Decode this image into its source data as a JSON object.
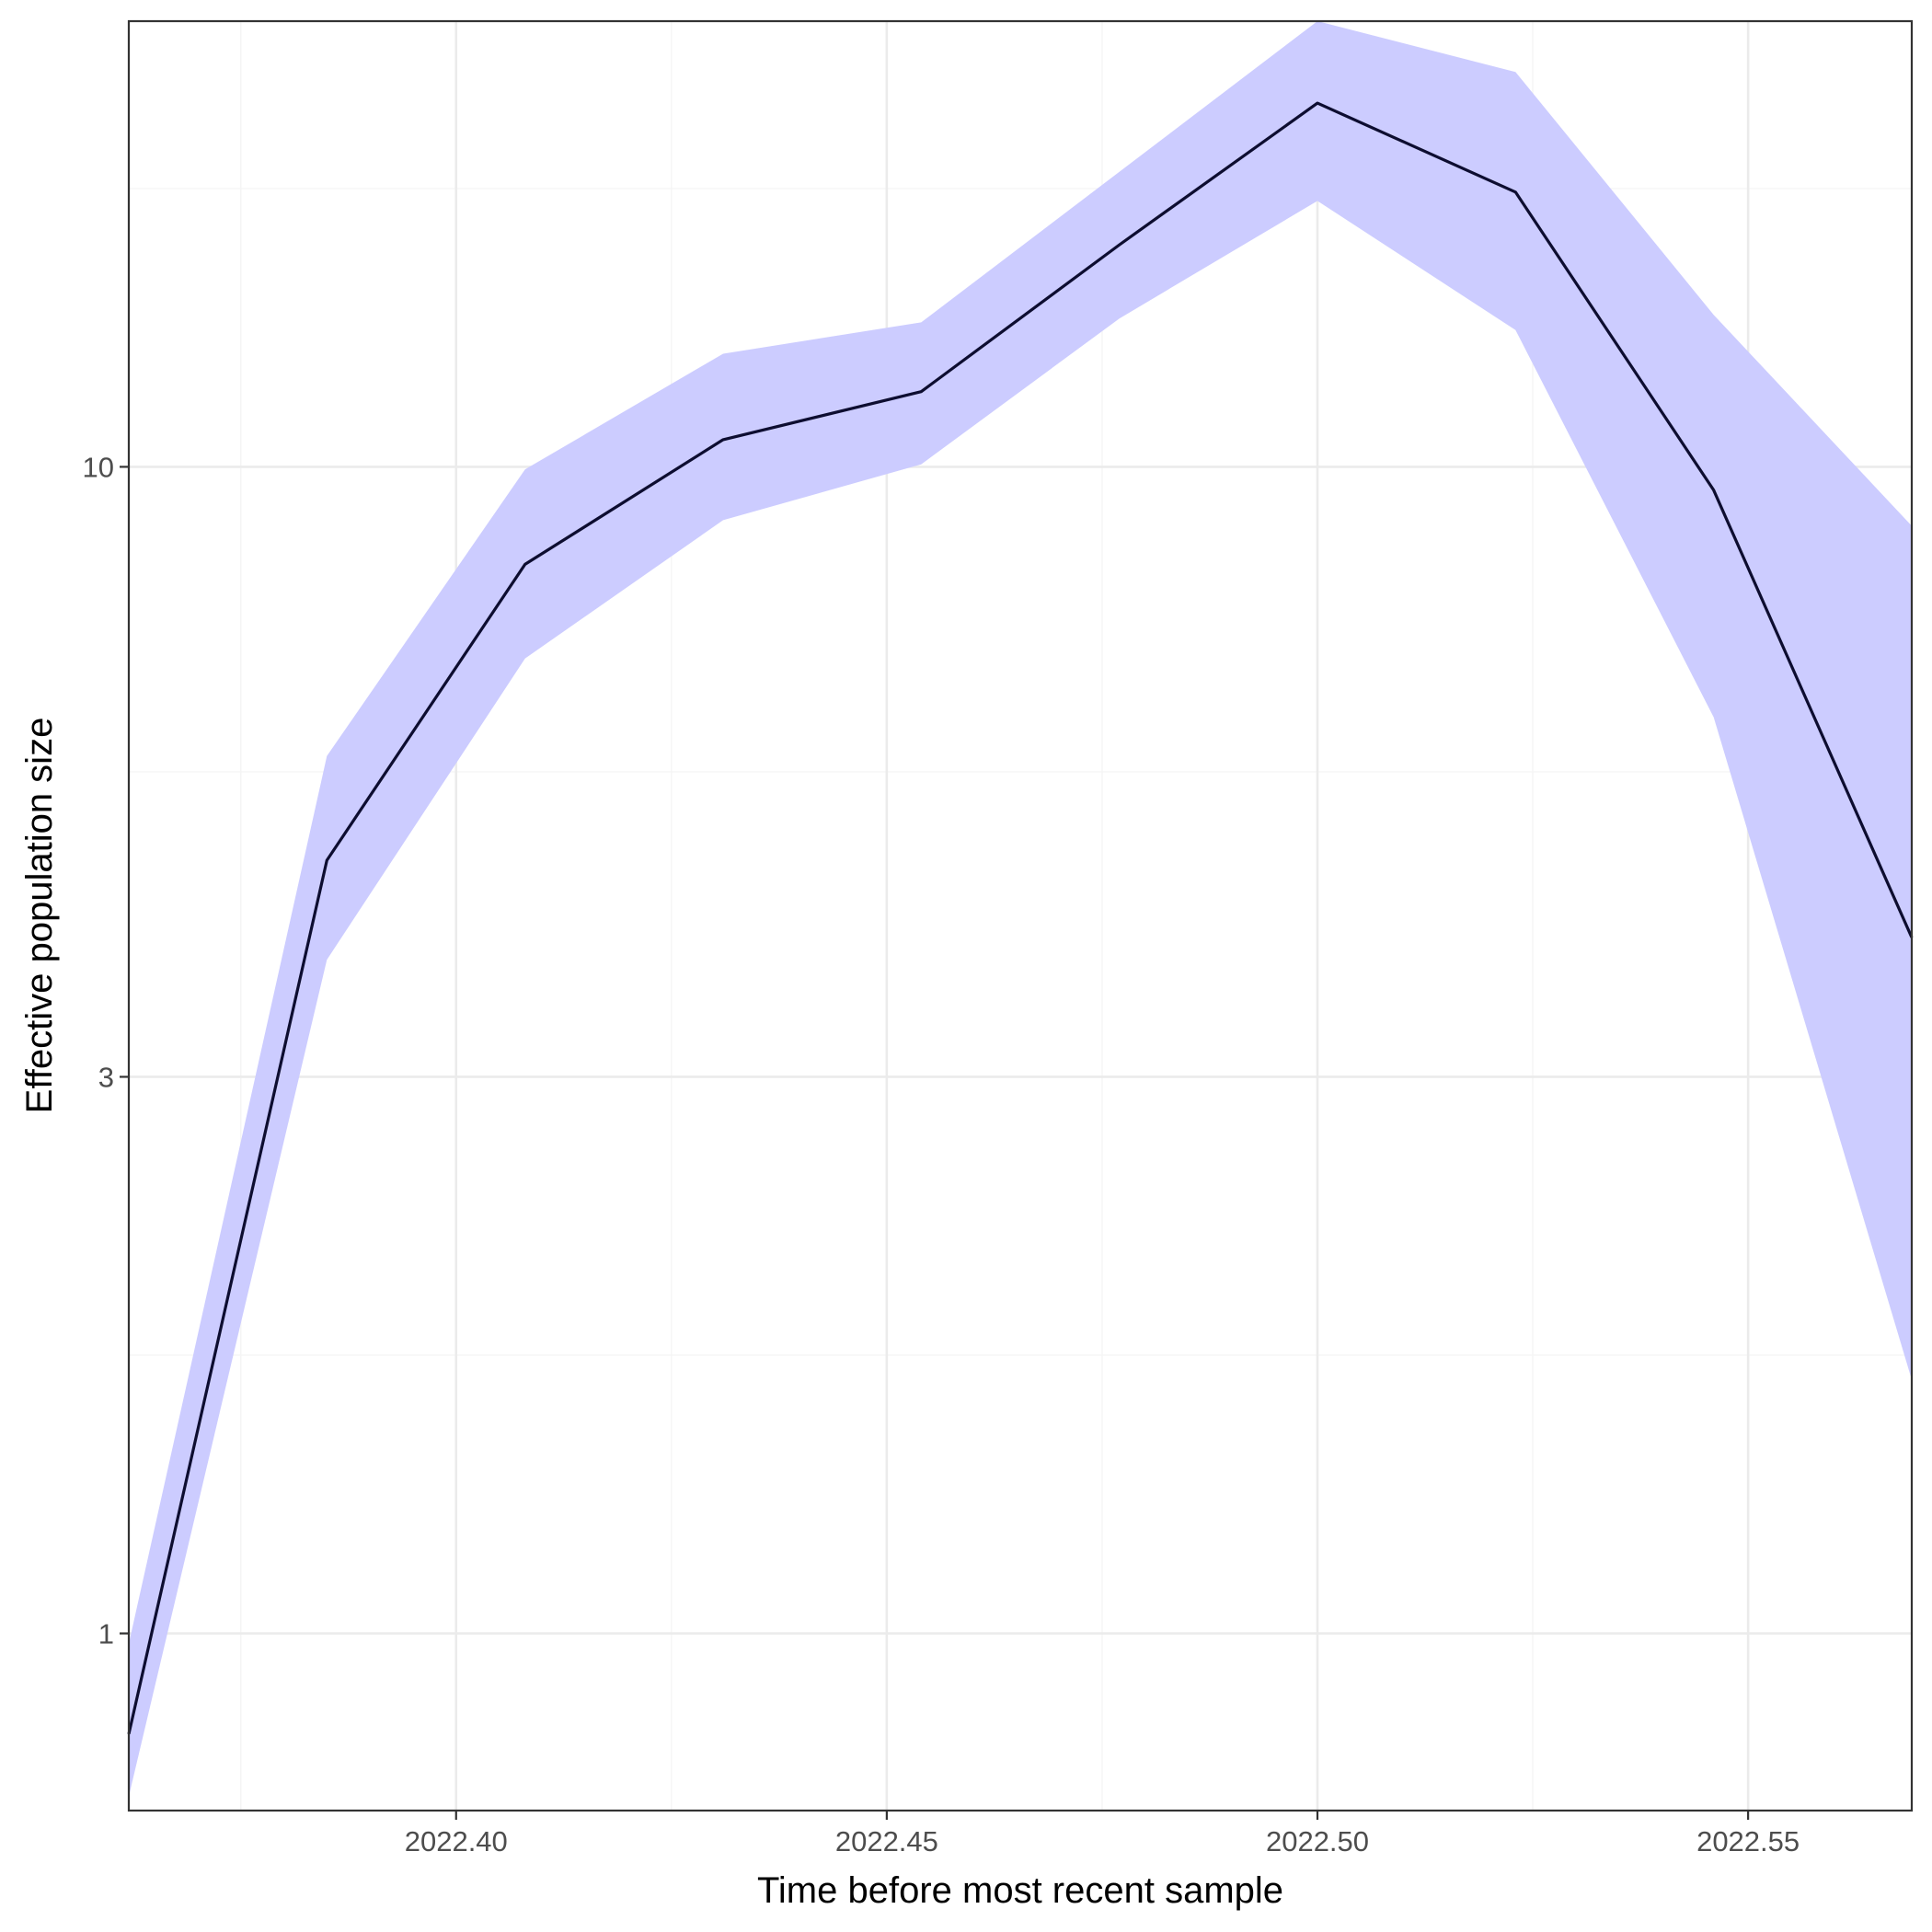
{
  "chart_data": {
    "type": "line",
    "title": "",
    "xlabel": "Time before most recent sample",
    "ylabel": "Effective population size",
    "y_scale": "log",
    "xlim": [
      2022.362,
      2022.569
    ],
    "ylim": [
      0.705,
      24.1
    ],
    "grid": true,
    "legend": "none",
    "x_ticks": [
      {
        "value": 2022.4,
        "label": "2022.40"
      },
      {
        "value": 2022.45,
        "label": "2022.45"
      },
      {
        "value": 2022.5,
        "label": "2022.50"
      },
      {
        "value": 2022.55,
        "label": "2022.55"
      }
    ],
    "x_minor_ticks": [
      2022.375,
      2022.425,
      2022.475,
      2022.525
    ],
    "y_ticks": [
      {
        "value": 1,
        "label": "1"
      },
      {
        "value": 3,
        "label": "3"
      },
      {
        "value": 10,
        "label": "10"
      }
    ],
    "y_minor_ticks": [
      1.732,
      5.477,
      17.32
    ],
    "series": [
      {
        "x": [
          2022.362,
          2022.385,
          2022.408,
          2022.431,
          2022.454,
          2022.477,
          2022.5,
          2022.523,
          2022.546,
          2022.569
        ],
        "y": [
          0.82,
          4.6,
          8.25,
          10.55,
          11.6,
          15.5,
          20.5,
          17.2,
          9.55,
          3.95
        ],
        "lower": [
          0.725,
          3.78,
          6.85,
          9.0,
          10.05,
          13.4,
          16.9,
          13.1,
          6.1,
          1.65
        ],
        "upper": [
          0.98,
          5.65,
          9.95,
          12.5,
          13.3,
          17.9,
          24.1,
          21.8,
          13.5,
          8.9
        ]
      }
    ],
    "colors": {
      "ribbon": "#ccccff",
      "line": "#0d0d30",
      "grid_major": "#ebebeb",
      "grid_minor": "#f5f5f5",
      "panel_border": "#333333",
      "tick_text": "#4d4d4d"
    }
  }
}
